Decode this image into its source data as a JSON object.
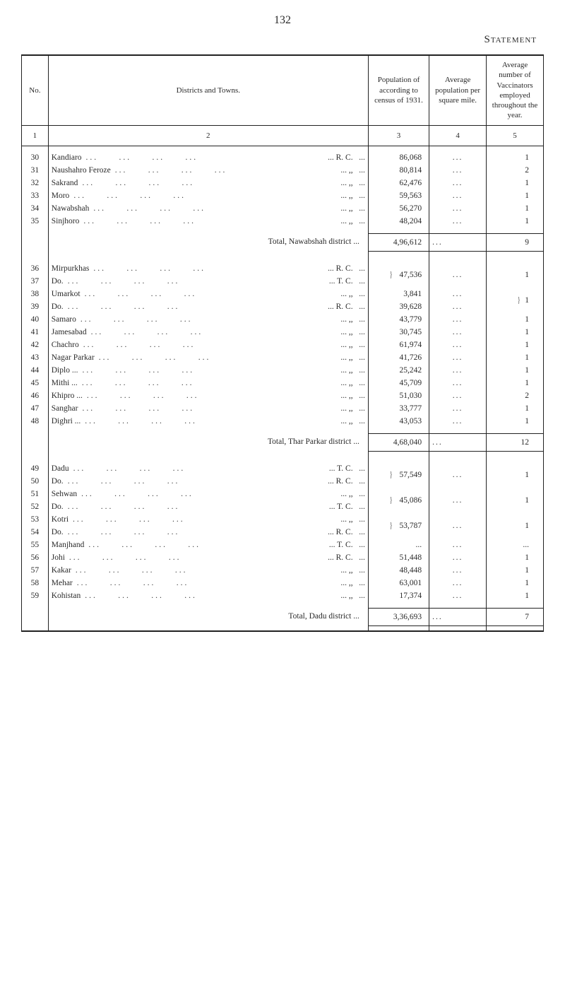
{
  "page_number": "132",
  "section_title": "Statement",
  "colors": {
    "text": "#2a2a2a",
    "background": "#ffffff",
    "border": "#222222"
  },
  "typography": {
    "body_font": "Georgia serif",
    "body_size_pt": 11.5,
    "header_size_pt": 11,
    "title_size_pt": 15
  },
  "headers": {
    "no": "No.",
    "districts": "Districts and Towns.",
    "population": "Population of according to census of 1931.",
    "avg_pop": "Average population per square mile.",
    "avg_vac": "Average number of Vaccinators employed throughout the year."
  },
  "subheaders": {
    "c1": "1",
    "c2": "2",
    "c3": "3",
    "c4": "4",
    "c5": "5"
  },
  "rows": [
    {
      "no": "30",
      "district": "Kandiaro",
      "suffix": "... R. C.",
      "pop": "86,068",
      "avg": "...",
      "vac": "1"
    },
    {
      "no": "31",
      "district": "Naushahro Feroze",
      "suffix": "...  ,,",
      "pop": "80,814",
      "avg": "...",
      "vac": "2"
    },
    {
      "no": "32",
      "district": "Sakrand",
      "suffix": "...  ,,",
      "pop": "62,476",
      "avg": "...",
      "vac": "1"
    },
    {
      "no": "33",
      "district": "Moro",
      "suffix": "...  ,,",
      "pop": "59,563",
      "avg": "...",
      "vac": "1"
    },
    {
      "no": "34",
      "district": "Nawabshah",
      "suffix": "...  ,,",
      "pop": "56,270",
      "avg": "...",
      "vac": "1"
    },
    {
      "no": "35",
      "district": "Sinjhoro",
      "suffix": "...  ,,",
      "pop": "48,204",
      "avg": "...",
      "vac": "1"
    }
  ],
  "total1": {
    "label": "Total, Nawabshah district  ...",
    "pop": "4,96,612",
    "avg": "...",
    "vac": "9"
  },
  "group2a": [
    {
      "no": "36",
      "district": "Mirpurkhas",
      "suffix": "... R. C."
    },
    {
      "no": "37",
      "district": "Do.",
      "suffix": "... T. C."
    }
  ],
  "group2a_pop": "47,536",
  "group2a_avg": "...",
  "group2a_vac": "1",
  "group2b": [
    {
      "no": "38",
      "district": "Umarkot",
      "suffix": "...  ,,",
      "pop": "3,841",
      "avg": "..."
    },
    {
      "no": "39",
      "district": "Do.",
      "suffix": "... R. C.",
      "pop": "39,628",
      "avg": "..."
    }
  ],
  "group2b_vac": "1",
  "rows3": [
    {
      "no": "40",
      "district": "Samaro",
      "suffix": "...  ,,",
      "pop": "43,779",
      "avg": "...",
      "vac": "1"
    },
    {
      "no": "41",
      "district": "Jamesabad",
      "suffix": "...  ,,",
      "pop": "30,745",
      "avg": "...",
      "vac": "1"
    },
    {
      "no": "42",
      "district": "Chachro",
      "suffix": "...  ,,",
      "pop": "61,974",
      "avg": "...",
      "vac": "1"
    },
    {
      "no": "43",
      "district": "Nagar Parkar",
      "suffix": "...  ,,",
      "pop": "41,726",
      "avg": "...",
      "vac": "1"
    },
    {
      "no": "44",
      "district": "Diplo ...",
      "suffix": "...  ,,",
      "pop": "25,242",
      "avg": "...",
      "vac": "1"
    },
    {
      "no": "45",
      "district": "Mithi ...",
      "suffix": "...  ,,",
      "pop": "45,709",
      "avg": "...",
      "vac": "1"
    },
    {
      "no": "46",
      "district": "Khipro ...",
      "suffix": "...  ,,",
      "pop": "51,030",
      "avg": "...",
      "vac": "2"
    },
    {
      "no": "47",
      "district": "Sanghar",
      "suffix": "...  ,,",
      "pop": "33,777",
      "avg": "...",
      "vac": "1"
    },
    {
      "no": "48",
      "district": "Dighri ...",
      "suffix": "...  ,,",
      "pop": "43,053",
      "avg": "...",
      "vac": "1"
    }
  ],
  "total2": {
    "label": "Total, Thar Parkar district  ...",
    "pop": "4,68,040",
    "avg": "...",
    "vac": "12"
  },
  "group4a": [
    {
      "no": "49",
      "district": "Dadu",
      "suffix": "... T. C."
    },
    {
      "no": "50",
      "district": "Do.",
      "suffix": "... R. C."
    }
  ],
  "group4a_pop": "57,549",
  "group4a_avg": "...",
  "group4a_vac": "1",
  "group4b": [
    {
      "no": "51",
      "district": "Sehwan",
      "suffix": "...  ,,"
    },
    {
      "no": "52",
      "district": "Do.",
      "suffix": "... T. C."
    }
  ],
  "group4b_pop": "45,086",
  "group4b_avg": "...",
  "group4b_vac": "1",
  "group4c": [
    {
      "no": "53",
      "district": "Kotri",
      "suffix": "...  ,,"
    },
    {
      "no": "54",
      "district": "Do.",
      "suffix": "... R. C."
    }
  ],
  "group4c_pop": "53,787",
  "group4c_avg": "...",
  "group4c_vac": "1",
  "rows5": [
    {
      "no": "55",
      "district": "Manjhand",
      "suffix": "... T. C.",
      "pop": "...",
      "avg": "...",
      "vac": "..."
    },
    {
      "no": "56",
      "district": "Johi",
      "suffix": "... R. C.",
      "pop": "51,448",
      "avg": "...",
      "vac": "1"
    },
    {
      "no": "57",
      "district": "Kakar",
      "suffix": "...  ,,",
      "pop": "48,448",
      "avg": "...",
      "vac": "1"
    },
    {
      "no": "58",
      "district": "Mehar",
      "suffix": "...  ,,",
      "pop": "63,001",
      "avg": "...",
      "vac": "1"
    },
    {
      "no": "59",
      "district": "Kohistan",
      "suffix": "...  ,,",
      "pop": "17,374",
      "avg": "...",
      "vac": "1"
    }
  ],
  "total3": {
    "label": "Total, Dadu district  ...",
    "pop": "3,36,693",
    "avg": "...",
    "vac": "7"
  }
}
